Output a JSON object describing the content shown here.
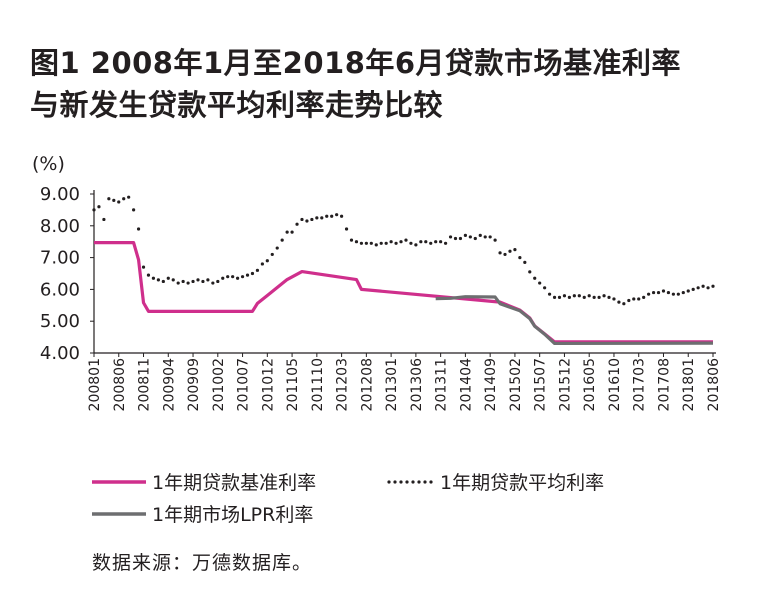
{
  "header": {
    "title_line1": "图1   2008年1月至2018年6月贷款市场基准利率",
    "title_line2": "与新发生贷款平均利率走势比较"
  },
  "source": "数据来源：万德数据库。",
  "chart_data": {
    "type": "line",
    "ylabel": "(%)",
    "ylim": [
      4.0,
      9.0
    ],
    "yticks": [
      "4.00",
      "5.00",
      "6.00",
      "7.00",
      "8.00",
      "9.00"
    ],
    "xlim": [
      "200801",
      "201806"
    ],
    "xticks": [
      "200801",
      "200806",
      "200811",
      "200904",
      "200909",
      "201002",
      "201007",
      "201012",
      "201105",
      "201110",
      "201203",
      "201208",
      "201301",
      "201306",
      "201311",
      "201404",
      "201409",
      "201502",
      "201507",
      "201512",
      "201605",
      "201610",
      "201703",
      "201708",
      "201801",
      "201806"
    ],
    "legend": "bottom",
    "series": [
      {
        "name": "1年期贷款基准利率",
        "style": "solid",
        "color": "#cf2f8c",
        "points": [
          [
            "200801",
            7.47
          ],
          [
            "200809",
            7.47
          ],
          [
            "200810",
            6.93
          ],
          [
            "200811",
            5.58
          ],
          [
            "200812",
            5.31
          ],
          [
            "201009",
            5.31
          ],
          [
            "201010",
            5.56
          ],
          [
            "201012",
            5.81
          ],
          [
            "201102",
            6.06
          ],
          [
            "201104",
            6.31
          ],
          [
            "201107",
            6.56
          ],
          [
            "201206",
            6.31
          ],
          [
            "201207",
            6.0
          ],
          [
            "201411",
            5.6
          ],
          [
            "201503",
            5.35
          ],
          [
            "201505",
            5.1
          ],
          [
            "201506",
            4.85
          ],
          [
            "201508",
            4.6
          ],
          [
            "201510",
            4.35
          ],
          [
            "201806",
            4.35
          ]
        ]
      },
      {
        "name": "1年期贷款平均利率",
        "style": "dotted",
        "color": "#231f20",
        "points": [
          [
            "200801",
            8.5
          ],
          [
            "200802",
            8.6
          ],
          [
            "200803",
            8.2
          ],
          [
            "200804",
            8.85
          ],
          [
            "200805",
            8.8
          ],
          [
            "200806",
            8.75
          ],
          [
            "200807",
            8.85
          ],
          [
            "200808",
            8.9
          ],
          [
            "200809",
            8.5
          ],
          [
            "200810",
            7.9
          ],
          [
            "200811",
            6.7
          ],
          [
            "200812",
            6.45
          ],
          [
            "200901",
            6.35
          ],
          [
            "200902",
            6.3
          ],
          [
            "200903",
            6.25
          ],
          [
            "200904",
            6.35
          ],
          [
            "200905",
            6.3
          ],
          [
            "200906",
            6.2
          ],
          [
            "200907",
            6.25
          ],
          [
            "200908",
            6.2
          ],
          [
            "200909",
            6.25
          ],
          [
            "200910",
            6.3
          ],
          [
            "200911",
            6.25
          ],
          [
            "200912",
            6.3
          ],
          [
            "201001",
            6.2
          ],
          [
            "201002",
            6.25
          ],
          [
            "201003",
            6.35
          ],
          [
            "201004",
            6.4
          ],
          [
            "201005",
            6.4
          ],
          [
            "201006",
            6.35
          ],
          [
            "201007",
            6.4
          ],
          [
            "201008",
            6.45
          ],
          [
            "201009",
            6.5
          ],
          [
            "201010",
            6.6
          ],
          [
            "201011",
            6.8
          ],
          [
            "201012",
            6.9
          ],
          [
            "201101",
            7.1
          ],
          [
            "201102",
            7.3
          ],
          [
            "201103",
            7.55
          ],
          [
            "201104",
            7.8
          ],
          [
            "201105",
            7.8
          ],
          [
            "201106",
            8.05
          ],
          [
            "201107",
            8.2
          ],
          [
            "201108",
            8.15
          ],
          [
            "201109",
            8.2
          ],
          [
            "201110",
            8.25
          ],
          [
            "201111",
            8.25
          ],
          [
            "201112",
            8.3
          ],
          [
            "201201",
            8.3
          ],
          [
            "201202",
            8.35
          ],
          [
            "201203",
            8.3
          ],
          [
            "201204",
            7.9
          ],
          [
            "201205",
            7.55
          ],
          [
            "201206",
            7.5
          ],
          [
            "201207",
            7.45
          ],
          [
            "201208",
            7.45
          ],
          [
            "201209",
            7.45
          ],
          [
            "201210",
            7.4
          ],
          [
            "201211",
            7.45
          ],
          [
            "201212",
            7.45
          ],
          [
            "201301",
            7.5
          ],
          [
            "201302",
            7.45
          ],
          [
            "201303",
            7.5
          ],
          [
            "201304",
            7.55
          ],
          [
            "201305",
            7.45
          ],
          [
            "201306",
            7.4
          ],
          [
            "201307",
            7.5
          ],
          [
            "201308",
            7.5
          ],
          [
            "201309",
            7.45
          ],
          [
            "201310",
            7.5
          ],
          [
            "201311",
            7.5
          ],
          [
            "201312",
            7.45
          ],
          [
            "201401",
            7.65
          ],
          [
            "201402",
            7.6
          ],
          [
            "201403",
            7.6
          ],
          [
            "201404",
            7.7
          ],
          [
            "201405",
            7.65
          ],
          [
            "201406",
            7.6
          ],
          [
            "201407",
            7.7
          ],
          [
            "201408",
            7.65
          ],
          [
            "201409",
            7.65
          ],
          [
            "201410",
            7.55
          ],
          [
            "201411",
            7.15
          ],
          [
            "201412",
            7.1
          ],
          [
            "201501",
            7.2
          ],
          [
            "201502",
            7.25
          ],
          [
            "201503",
            7.0
          ],
          [
            "201504",
            6.85
          ],
          [
            "201505",
            6.55
          ],
          [
            "201506",
            6.35
          ],
          [
            "201507",
            6.2
          ],
          [
            "201508",
            6.05
          ],
          [
            "201509",
            5.85
          ],
          [
            "201510",
            5.75
          ],
          [
            "201511",
            5.75
          ],
          [
            "201512",
            5.8
          ],
          [
            "201601",
            5.75
          ],
          [
            "201602",
            5.8
          ],
          [
            "201603",
            5.8
          ],
          [
            "201604",
            5.75
          ],
          [
            "201605",
            5.8
          ],
          [
            "201606",
            5.75
          ],
          [
            "201607",
            5.75
          ],
          [
            "201608",
            5.8
          ],
          [
            "201609",
            5.75
          ],
          [
            "201610",
            5.7
          ],
          [
            "201611",
            5.6
          ],
          [
            "201612",
            5.55
          ],
          [
            "201701",
            5.65
          ],
          [
            "201702",
            5.7
          ],
          [
            "201703",
            5.7
          ],
          [
            "201704",
            5.75
          ],
          [
            "201705",
            5.85
          ],
          [
            "201706",
            5.9
          ],
          [
            "201707",
            5.9
          ],
          [
            "201708",
            5.95
          ],
          [
            "201709",
            5.9
          ],
          [
            "201710",
            5.85
          ],
          [
            "201711",
            5.85
          ],
          [
            "201712",
            5.9
          ],
          [
            "201801",
            5.95
          ],
          [
            "201802",
            6.0
          ],
          [
            "201803",
            6.05
          ],
          [
            "201804",
            6.1
          ],
          [
            "201805",
            6.05
          ],
          [
            "201806",
            6.1
          ]
        ]
      },
      {
        "name": "1年期市场LPR利率",
        "style": "solid",
        "color": "#6d6e70",
        "points": [
          [
            "201310",
            5.71
          ],
          [
            "201401",
            5.72
          ],
          [
            "201404",
            5.77
          ],
          [
            "201410",
            5.76
          ],
          [
            "201411",
            5.55
          ],
          [
            "201503",
            5.33
          ],
          [
            "201505",
            5.08
          ],
          [
            "201506",
            4.84
          ],
          [
            "201508",
            4.59
          ],
          [
            "201510",
            4.3
          ],
          [
            "201806",
            4.31
          ]
        ]
      }
    ]
  }
}
